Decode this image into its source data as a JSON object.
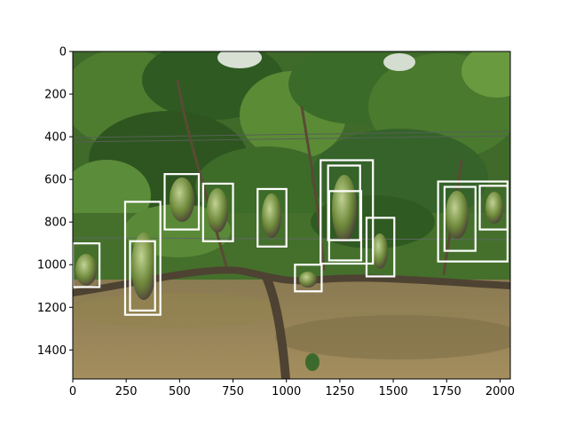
{
  "figure": {
    "image_alt_semantic": "vineyard-photo",
    "box_color": "#ffffff",
    "axis_color": "#000000"
  },
  "chart_data": {
    "type": "image-with-boxes",
    "title": "",
    "xlabel": "",
    "ylabel": "",
    "xlim": [
      0,
      2048
    ],
    "ylim": [
      1536,
      0
    ],
    "xticks": [
      0,
      250,
      500,
      750,
      1000,
      1250,
      1500,
      1750,
      2000
    ],
    "yticks": [
      0,
      200,
      400,
      600,
      800,
      1000,
      1200,
      1400
    ],
    "xtick_labels": [
      "0",
      "250",
      "500",
      "750",
      "1000",
      "1250",
      "1500",
      "1750",
      "2000"
    ],
    "ytick_labels": [
      "0",
      "200",
      "400",
      "600",
      "800",
      "1000",
      "1200",
      "1400"
    ],
    "boxes": [
      {
        "x0": 0,
        "y0": 900,
        "x1": 125,
        "y1": 1105
      },
      {
        "x0": 245,
        "y0": 705,
        "x1": 410,
        "y1": 1235
      },
      {
        "x0": 268,
        "y0": 890,
        "x1": 385,
        "y1": 1215
      },
      {
        "x0": 430,
        "y0": 575,
        "x1": 590,
        "y1": 835
      },
      {
        "x0": 610,
        "y0": 620,
        "x1": 750,
        "y1": 890
      },
      {
        "x0": 865,
        "y0": 645,
        "x1": 1000,
        "y1": 915
      },
      {
        "x0": 1040,
        "y0": 1000,
        "x1": 1165,
        "y1": 1125
      },
      {
        "x0": 1160,
        "y0": 510,
        "x1": 1405,
        "y1": 995
      },
      {
        "x0": 1195,
        "y0": 535,
        "x1": 1345,
        "y1": 885
      },
      {
        "x0": 1200,
        "y0": 655,
        "x1": 1350,
        "y1": 980
      },
      {
        "x0": 1375,
        "y0": 780,
        "x1": 1505,
        "y1": 1055
      },
      {
        "x0": 1710,
        "y0": 610,
        "x1": 2035,
        "y1": 985
      },
      {
        "x0": 1740,
        "y0": 635,
        "x1": 1885,
        "y1": 935
      },
      {
        "x0": 1905,
        "y0": 630,
        "x1": 2035,
        "y1": 835
      }
    ]
  }
}
